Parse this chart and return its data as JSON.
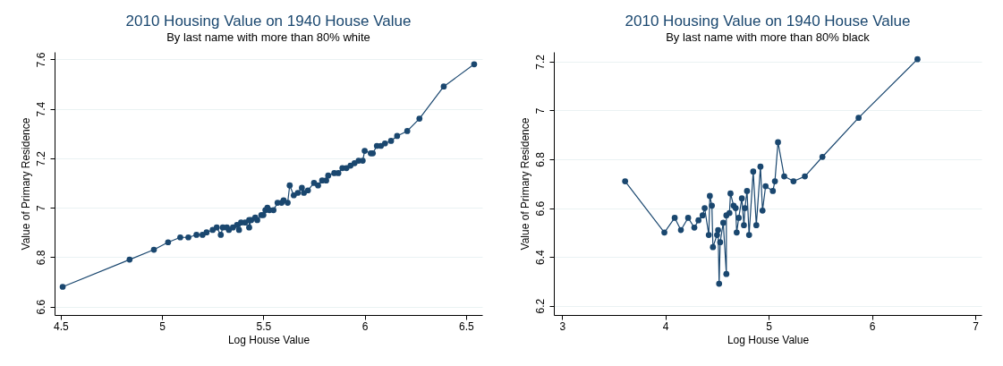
{
  "chart_data": [
    {
      "type": "line",
      "title": "2010 Housing Value on 1940 House Value",
      "subtitle": "By last name with more than 80% white",
      "xlabel": "Log House Value",
      "ylabel": "Value of Primary Residence",
      "marker": "circle",
      "grid": "y",
      "xlim": [
        4.47,
        6.58
      ],
      "ylim": [
        6.566,
        7.63
      ],
      "xticks": [
        4.5,
        5,
        5.5,
        6,
        6.5
      ],
      "yticks": [
        6.6,
        6.8,
        7,
        7.2,
        7.4,
        7.6
      ],
      "x": [
        4.51,
        4.84,
        4.96,
        5.03,
        5.09,
        5.13,
        5.17,
        5.2,
        5.22,
        5.25,
        5.27,
        5.29,
        5.3,
        5.32,
        5.33,
        5.35,
        5.37,
        5.38,
        5.39,
        5.41,
        5.43,
        5.43,
        5.44,
        5.46,
        5.47,
        5.49,
        5.5,
        5.51,
        5.52,
        5.53,
        5.55,
        5.57,
        5.59,
        5.6,
        5.62,
        5.63,
        5.65,
        5.67,
        5.69,
        5.7,
        5.72,
        5.75,
        5.77,
        5.79,
        5.81,
        5.82,
        5.85,
        5.87,
        5.89,
        5.91,
        5.93,
        5.95,
        5.97,
        5.99,
        6.0,
        6.03,
        6.04,
        6.06,
        6.08,
        6.1,
        6.13,
        6.16,
        6.21,
        6.27,
        6.39,
        6.54
      ],
      "series": [
        {
          "color": "#1a476f",
          "values": [
            6.68,
            6.79,
            6.83,
            6.86,
            6.88,
            6.88,
            6.89,
            6.89,
            6.9,
            6.91,
            6.92,
            6.89,
            6.92,
            6.92,
            6.91,
            6.92,
            6.93,
            6.91,
            6.94,
            6.94,
            6.95,
            6.92,
            6.95,
            6.96,
            6.95,
            6.97,
            6.97,
            6.99,
            7.0,
            6.99,
            6.99,
            7.02,
            7.02,
            7.03,
            7.02,
            7.09,
            7.05,
            7.06,
            7.08,
            7.06,
            7.07,
            7.1,
            7.09,
            7.11,
            7.11,
            7.13,
            7.14,
            7.14,
            7.16,
            7.16,
            7.17,
            7.18,
            7.19,
            7.19,
            7.23,
            7.22,
            7.22,
            7.25,
            7.25,
            7.26,
            7.27,
            7.29,
            7.31,
            7.36,
            7.49,
            7.58
          ]
        }
      ]
    },
    {
      "type": "line",
      "title": "2010 Housing Value on 1940 House Value",
      "subtitle": "By last name with more than 80% black",
      "xlabel": "Log House Value",
      "ylabel": "Value of Primary Residence",
      "marker": "circle",
      "grid": "y",
      "xlim": [
        2.92,
        7.06
      ],
      "ylim": [
        6.162,
        7.24
      ],
      "xticks": [
        3,
        4,
        5,
        6,
        7
      ],
      "yticks": [
        6.2,
        6.4,
        6.6,
        6.8,
        7,
        7.2
      ],
      "x": [
        3.61,
        3.99,
        4.09,
        4.15,
        4.22,
        4.28,
        4.32,
        4.36,
        4.38,
        4.42,
        4.43,
        4.45,
        4.46,
        4.5,
        4.51,
        4.52,
        4.53,
        4.56,
        4.59,
        4.59,
        4.62,
        4.63,
        4.66,
        4.68,
        4.69,
        4.71,
        4.74,
        4.76,
        4.77,
        4.79,
        4.81,
        4.85,
        4.88,
        4.92,
        4.94,
        4.97,
        5.04,
        5.06,
        5.09,
        5.15,
        5.24,
        5.35,
        5.52,
        5.87,
        6.44
      ],
      "series": [
        {
          "color": "#1a476f",
          "values": [
            6.71,
            6.5,
            6.56,
            6.51,
            6.56,
            6.52,
            6.55,
            6.57,
            6.6,
            6.49,
            6.65,
            6.61,
            6.44,
            6.49,
            6.51,
            6.29,
            6.46,
            6.54,
            6.33,
            6.57,
            6.58,
            6.66,
            6.61,
            6.6,
            6.5,
            6.56,
            6.64,
            6.53,
            6.6,
            6.67,
            6.49,
            6.75,
            6.53,
            6.77,
            6.59,
            6.69,
            6.67,
            6.71,
            6.87,
            6.73,
            6.71,
            6.73,
            6.81,
            6.97,
            7.21
          ]
        }
      ]
    }
  ]
}
